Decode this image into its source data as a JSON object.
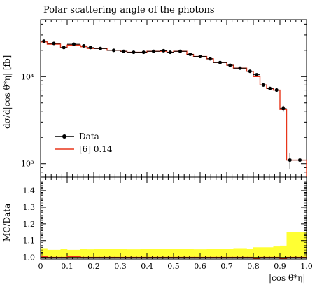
{
  "chart_data": {
    "type": "line",
    "title": "Polar scattering angle of the photons",
    "top_panel": {
      "ylabel": "dσ/d|cos θ*η| [fb]",
      "yscale": "log",
      "ylim": [
        700,
        45000
      ],
      "xlim": [
        0,
        1
      ],
      "ytick_labels": [
        "10³",
        "10⁴"
      ],
      "bin_edges": [
        0,
        0.025,
        0.075,
        0.1,
        0.15,
        0.175,
        0.2,
        0.25,
        0.3,
        0.325,
        0.375,
        0.4,
        0.45,
        0.475,
        0.5,
        0.55,
        0.575,
        0.625,
        0.65,
        0.7,
        0.725,
        0.775,
        0.8,
        0.825,
        0.85,
        0.875,
        0.9,
        0.925,
        0.95,
        1.0
      ],
      "series": [
        {
          "name": "Data",
          "x": [
            0.0125,
            0.05,
            0.0875,
            0.125,
            0.1625,
            0.1875,
            0.225,
            0.275,
            0.3125,
            0.35,
            0.3875,
            0.425,
            0.4625,
            0.4875,
            0.525,
            0.5625,
            0.6,
            0.6375,
            0.675,
            0.7125,
            0.75,
            0.7875,
            0.8125,
            0.8375,
            0.8625,
            0.8875,
            0.9125,
            0.9375,
            0.975
          ],
          "y": [
            25500,
            24000,
            21500,
            23500,
            22500,
            21500,
            21000,
            20000,
            19500,
            19000,
            19000,
            19500,
            19800,
            19000,
            19500,
            18000,
            17000,
            16000,
            14500,
            13500,
            12500,
            11500,
            10500,
            8000,
            7300,
            7000,
            4300,
            1100,
            1100
          ],
          "yerr": [
            1000,
            900,
            800,
            900,
            800,
            800,
            800,
            800,
            700,
            700,
            700,
            700,
            700,
            700,
            700,
            650,
            600,
            600,
            550,
            500,
            500,
            450,
            400,
            350,
            300,
            300,
            350,
            230,
            230
          ]
        },
        {
          "name": "[6] 0.14",
          "y": [
            25000,
            23500,
            21500,
            23000,
            22000,
            21000,
            21000,
            20000,
            19500,
            19000,
            19000,
            19500,
            19500,
            19000,
            19500,
            18000,
            17000,
            16000,
            14500,
            13500,
            12500,
            11500,
            10000,
            8000,
            7300,
            7000,
            4200,
            1100,
            1100
          ]
        }
      ]
    },
    "ratio_panel": {
      "ylabel": "MC/Data",
      "xlabel": "|cos θ*η|",
      "ylim": [
        0.99,
        1.48
      ],
      "ytick_labels": [
        "1.0",
        "1.1",
        "1.2",
        "1.3",
        "1.4"
      ],
      "xtick_labels": [
        "0",
        "0.1",
        "0.2",
        "0.3",
        "0.4",
        "0.5",
        "0.6",
        "0.7",
        "0.8",
        "0.9",
        "1.0"
      ],
      "band_upper": [
        1.055,
        1.045,
        1.05,
        1.045,
        1.05,
        1.048,
        1.05,
        1.052,
        1.05,
        1.048,
        1.05,
        1.05,
        1.052,
        1.05,
        1.05,
        1.05,
        1.048,
        1.05,
        1.05,
        1.05,
        1.055,
        1.05,
        1.06,
        1.06,
        1.06,
        1.065,
        1.07,
        1.15,
        1.15
      ],
      "band_lower": [
        1.0,
        1.0,
        1.0,
        1.0,
        1.0,
        1.0,
        1.0,
        1.0,
        1.0,
        1.0,
        1.0,
        1.0,
        1.0,
        1.0,
        1.0,
        1.0,
        1.0,
        1.0,
        1.0,
        1.0,
        1.0,
        1.0,
        1.0,
        1.0,
        1.0,
        1.0,
        1.0,
        1.0,
        1.0
      ],
      "mc_ratio": [
        1.005,
        1.0,
        1.0,
        1.005,
        1.0,
        1.0,
        1.0,
        1.0,
        1.0,
        1.0,
        1.0,
        1.0,
        1.0,
        1.0,
        1.0,
        1.0,
        1.0,
        1.0,
        1.0,
        1.0,
        1.0,
        1.0,
        0.995,
        1.0,
        1.0,
        1.0,
        0.995,
        1.0,
        1.0
      ]
    },
    "colors": {
      "data": "#000000",
      "mc": "#e8351a",
      "band": "#ffff33"
    },
    "legend_position": "lower-left"
  }
}
